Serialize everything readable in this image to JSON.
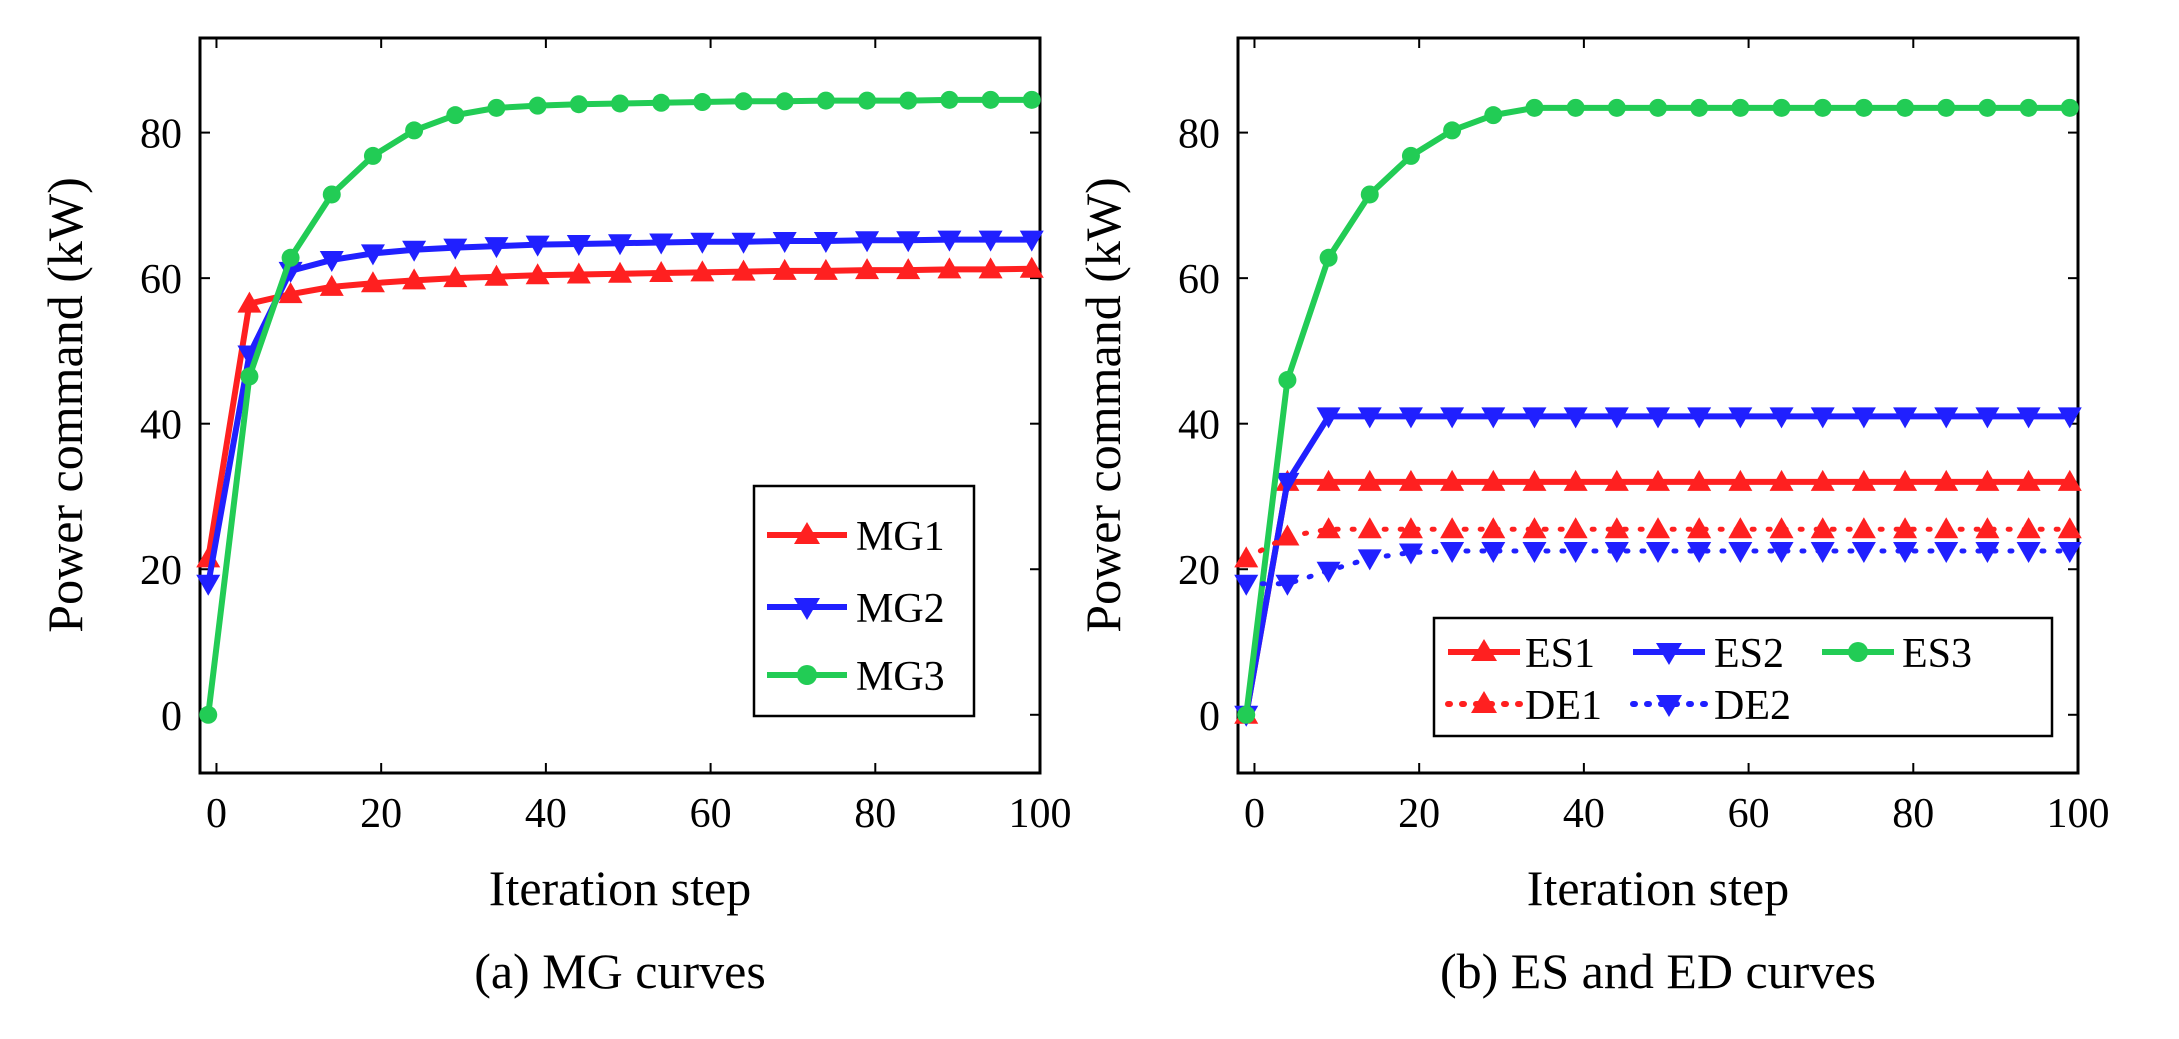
{
  "chart_data": [
    {
      "type": "line",
      "caption": "(a) MG curves",
      "xlabel": "Iteration step",
      "ylabel": "Power command (kW)",
      "xlim": [
        -2,
        100
      ],
      "ylim": [
        -8,
        93
      ],
      "xticks": [
        "0",
        "20",
        "40",
        "60",
        "80",
        "100"
      ],
      "yticks": [
        "0",
        "20",
        "40",
        "60",
        "80"
      ],
      "legend_position": "bottom-right",
      "x": [
        -1,
        4,
        9,
        14,
        19,
        24,
        29,
        34,
        39,
        44,
        49,
        54,
        59,
        64,
        69,
        74,
        79,
        84,
        89,
        94,
        99
      ],
      "series": [
        {
          "name": "MG1",
          "color": "#ff2020",
          "marker": "triangle-up",
          "style": "solid",
          "values": [
            21.5,
            56.5,
            57.8,
            58.8,
            59.3,
            59.7,
            60.0,
            60.2,
            60.4,
            60.5,
            60.6,
            60.7,
            60.8,
            60.9,
            61.0,
            61.0,
            61.1,
            61.1,
            61.2,
            61.2,
            61.3
          ]
        },
        {
          "name": "MG2",
          "color": "#2020ff",
          "marker": "triangle-down",
          "style": "solid",
          "values": [
            18.0,
            49.5,
            61.0,
            62.5,
            63.4,
            63.9,
            64.2,
            64.4,
            64.6,
            64.7,
            64.8,
            64.9,
            65.0,
            65.0,
            65.1,
            65.1,
            65.2,
            65.2,
            65.3,
            65.3,
            65.3
          ]
        },
        {
          "name": "MG3",
          "color": "#22cc55",
          "marker": "circle",
          "style": "solid",
          "values": [
            0.0,
            46.5,
            62.8,
            71.5,
            76.8,
            80.3,
            82.4,
            83.4,
            83.7,
            83.9,
            84.0,
            84.1,
            84.2,
            84.3,
            84.3,
            84.4,
            84.4,
            84.4,
            84.5,
            84.5,
            84.5
          ]
        }
      ]
    },
    {
      "type": "line",
      "caption": "(b) ES and ED curves",
      "xlabel": "Iteration step",
      "ylabel": "Power command (kW)",
      "xlim": [
        -2,
        100
      ],
      "ylim": [
        -8,
        93
      ],
      "xticks": [
        "0",
        "20",
        "40",
        "60",
        "80",
        "100"
      ],
      "yticks": [
        "0",
        "20",
        "40",
        "60",
        "80"
      ],
      "legend_position": "bottom-right",
      "x": [
        -1,
        4,
        9,
        14,
        19,
        24,
        29,
        34,
        39,
        44,
        49,
        54,
        59,
        64,
        69,
        74,
        79,
        84,
        89,
        94,
        99
      ],
      "series": [
        {
          "name": "ES1",
          "color": "#ff2020",
          "marker": "triangle-up",
          "style": "solid",
          "values": [
            0.0,
            32.0,
            32.0,
            32.0,
            32.0,
            32.0,
            32.0,
            32.0,
            32.0,
            32.0,
            32.0,
            32.0,
            32.0,
            32.0,
            32.0,
            32.0,
            32.0,
            32.0,
            32.0,
            32.0,
            32.0
          ]
        },
        {
          "name": "ES2",
          "color": "#2020ff",
          "marker": "triangle-down",
          "style": "solid",
          "values": [
            0.0,
            32.0,
            41.0,
            41.0,
            41.0,
            41.0,
            41.0,
            41.0,
            41.0,
            41.0,
            41.0,
            41.0,
            41.0,
            41.0,
            41.0,
            41.0,
            41.0,
            41.0,
            41.0,
            41.0,
            41.0
          ]
        },
        {
          "name": "ES3",
          "color": "#22cc55",
          "marker": "circle",
          "style": "solid",
          "values": [
            0.0,
            46.0,
            62.8,
            71.5,
            76.8,
            80.3,
            82.4,
            83.4,
            83.4,
            83.4,
            83.4,
            83.4,
            83.4,
            83.4,
            83.4,
            83.4,
            83.4,
            83.4,
            83.4,
            83.4,
            83.4
          ]
        },
        {
          "name": "DE1",
          "color": "#ff2020",
          "marker": "triangle-up",
          "style": "dotted",
          "values": [
            21.5,
            24.5,
            25.5,
            25.5,
            25.5,
            25.5,
            25.5,
            25.5,
            25.5,
            25.5,
            25.5,
            25.5,
            25.5,
            25.5,
            25.5,
            25.5,
            25.5,
            25.5,
            25.5,
            25.5,
            25.5
          ]
        },
        {
          "name": "DE2",
          "color": "#2020ff",
          "marker": "triangle-down",
          "style": "dotted",
          "values": [
            18.0,
            18.0,
            19.8,
            21.5,
            22.3,
            22.5,
            22.5,
            22.5,
            22.5,
            22.5,
            22.5,
            22.5,
            22.5,
            22.5,
            22.5,
            22.5,
            22.5,
            22.5,
            22.5,
            22.5,
            22.5
          ]
        }
      ]
    }
  ]
}
